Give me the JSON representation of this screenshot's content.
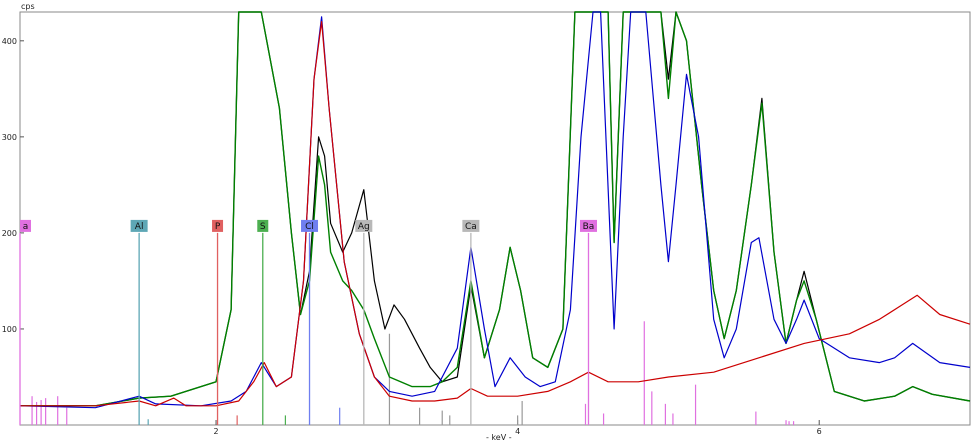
{
  "chart_data": {
    "type": "line",
    "ylabel": "cps",
    "xlabel": "- keV -",
    "xlim": [
      0.7,
      7.0
    ],
    "ylim": [
      0,
      430
    ],
    "x_ticks": [
      {
        "v": 2,
        "label": "2"
      },
      {
        "v": 4,
        "label": "4"
      },
      {
        "v": 6,
        "label": "6"
      }
    ],
    "y_ticks": [
      {
        "v": 100,
        "label": "100"
      },
      {
        "v": 200,
        "label": "200"
      },
      {
        "v": 300,
        "label": "300"
      },
      {
        "v": 400,
        "label": "400"
      }
    ],
    "element_markers": [
      {
        "label": "a",
        "x": 0.7,
        "color": "#e070e0"
      },
      {
        "label": "Al",
        "x": 1.49,
        "color": "#5ea7b5"
      },
      {
        "label": "P",
        "x": 2.01,
        "color": "#e06060"
      },
      {
        "label": "S",
        "x": 2.31,
        "color": "#4caf50"
      },
      {
        "label": "Cl",
        "x": 2.62,
        "color": "#6f7ff0"
      },
      {
        "label": "Ag",
        "x": 2.98,
        "color": "#b8b8b8"
      },
      {
        "label": "Ca",
        "x": 3.69,
        "color": "#b8b8b8"
      },
      {
        "label": "Ba",
        "x": 4.47,
        "color": "#e070e0"
      }
    ],
    "series": [
      {
        "color": "#000000",
        "dash": "",
        "points": [
          [
            0.7,
            20
          ],
          [
            1.2,
            20
          ],
          [
            1.49,
            28
          ],
          [
            1.7,
            30
          ],
          [
            2.0,
            45
          ],
          [
            2.1,
            120
          ],
          [
            2.15,
            430
          ],
          [
            2.3,
            430
          ],
          [
            2.42,
            330
          ],
          [
            2.5,
            200
          ],
          [
            2.56,
            115
          ],
          [
            2.62,
            160
          ],
          [
            2.68,
            300
          ],
          [
            2.72,
            280
          ],
          [
            2.76,
            210
          ],
          [
            2.84,
            180
          ],
          [
            2.9,
            200
          ],
          [
            2.98,
            245
          ],
          [
            3.05,
            150
          ],
          [
            3.12,
            100
          ],
          [
            3.18,
            125
          ],
          [
            3.25,
            110
          ],
          [
            3.35,
            80
          ],
          [
            3.42,
            60
          ],
          [
            3.5,
            45
          ],
          [
            3.6,
            50
          ],
          [
            3.69,
            145
          ],
          [
            3.78,
            70
          ],
          [
            3.88,
            120
          ],
          [
            3.95,
            185
          ],
          [
            4.02,
            140
          ],
          [
            4.1,
            70
          ],
          [
            4.2,
            60
          ],
          [
            4.3,
            100
          ],
          [
            4.38,
            430
          ],
          [
            4.6,
            430
          ],
          [
            4.64,
            190
          ],
          [
            4.7,
            430
          ],
          [
            4.95,
            430
          ],
          [
            5.0,
            360
          ],
          [
            5.05,
            430
          ],
          [
            5.12,
            400
          ],
          [
            5.22,
            250
          ],
          [
            5.3,
            140
          ],
          [
            5.37,
            90
          ],
          [
            5.45,
            140
          ],
          [
            5.55,
            250
          ],
          [
            5.62,
            340
          ],
          [
            5.7,
            180
          ],
          [
            5.78,
            85
          ],
          [
            5.85,
            130
          ],
          [
            5.9,
            160
          ],
          [
            5.98,
            110
          ],
          [
            6.1,
            35
          ],
          [
            6.3,
            25
          ],
          [
            6.5,
            30
          ],
          [
            6.62,
            40
          ],
          [
            6.75,
            32
          ],
          [
            7.0,
            25
          ]
        ]
      },
      {
        "color": "#008000",
        "dash": "",
        "points": [
          [
            0.7,
            20
          ],
          [
            1.2,
            20
          ],
          [
            1.49,
            28
          ],
          [
            1.7,
            30
          ],
          [
            2.0,
            45
          ],
          [
            2.1,
            120
          ],
          [
            2.15,
            430
          ],
          [
            2.3,
            430
          ],
          [
            2.42,
            330
          ],
          [
            2.5,
            200
          ],
          [
            2.56,
            115
          ],
          [
            2.62,
            150
          ],
          [
            2.68,
            280
          ],
          [
            2.72,
            250
          ],
          [
            2.76,
            180
          ],
          [
            2.84,
            150
          ],
          [
            2.9,
            140
          ],
          [
            2.98,
            120
          ],
          [
            3.05,
            90
          ],
          [
            3.15,
            50
          ],
          [
            3.3,
            40
          ],
          [
            3.42,
            40
          ],
          [
            3.5,
            45
          ],
          [
            3.6,
            60
          ],
          [
            3.69,
            150
          ],
          [
            3.78,
            70
          ],
          [
            3.88,
            120
          ],
          [
            3.95,
            185
          ],
          [
            4.02,
            140
          ],
          [
            4.1,
            70
          ],
          [
            4.2,
            60
          ],
          [
            4.3,
            100
          ],
          [
            4.38,
            430
          ],
          [
            4.6,
            430
          ],
          [
            4.64,
            190
          ],
          [
            4.7,
            430
          ],
          [
            4.95,
            430
          ],
          [
            5.0,
            340
          ],
          [
            5.05,
            430
          ],
          [
            5.12,
            400
          ],
          [
            5.22,
            250
          ],
          [
            5.3,
            140
          ],
          [
            5.37,
            90
          ],
          [
            5.45,
            140
          ],
          [
            5.55,
            250
          ],
          [
            5.62,
            335
          ],
          [
            5.7,
            180
          ],
          [
            5.78,
            85
          ],
          [
            5.85,
            130
          ],
          [
            5.9,
            150
          ],
          [
            5.98,
            110
          ],
          [
            6.1,
            35
          ],
          [
            6.3,
            25
          ],
          [
            6.5,
            30
          ],
          [
            6.62,
            40
          ],
          [
            6.75,
            32
          ],
          [
            7.0,
            25
          ]
        ]
      },
      {
        "color": "#0000cc",
        "dash": "",
        "points": [
          [
            0.7,
            20
          ],
          [
            1.2,
            18
          ],
          [
            1.49,
            30
          ],
          [
            1.6,
            22
          ],
          [
            1.9,
            20
          ],
          [
            2.1,
            25
          ],
          [
            2.2,
            35
          ],
          [
            2.3,
            65
          ],
          [
            2.4,
            40
          ],
          [
            2.5,
            50
          ],
          [
            2.58,
            150
          ],
          [
            2.65,
            360
          ],
          [
            2.7,
            425
          ],
          [
            2.75,
            330
          ],
          [
            2.85,
            170
          ],
          [
            2.95,
            95
          ],
          [
            3.05,
            50
          ],
          [
            3.15,
            35
          ],
          [
            3.3,
            30
          ],
          [
            3.45,
            35
          ],
          [
            3.6,
            80
          ],
          [
            3.69,
            185
          ],
          [
            3.78,
            100
          ],
          [
            3.85,
            40
          ],
          [
            3.95,
            70
          ],
          [
            4.05,
            50
          ],
          [
            4.15,
            40
          ],
          [
            4.25,
            45
          ],
          [
            4.35,
            120
          ],
          [
            4.42,
            300
          ],
          [
            4.5,
            430
          ],
          [
            4.55,
            430
          ],
          [
            4.64,
            100
          ],
          [
            4.7,
            300
          ],
          [
            4.75,
            430
          ],
          [
            4.85,
            430
          ],
          [
            4.95,
            250
          ],
          [
            5.0,
            170
          ],
          [
            5.05,
            250
          ],
          [
            5.12,
            365
          ],
          [
            5.2,
            300
          ],
          [
            5.3,
            110
          ],
          [
            5.37,
            70
          ],
          [
            5.45,
            100
          ],
          [
            5.55,
            190
          ],
          [
            5.6,
            195
          ],
          [
            5.7,
            110
          ],
          [
            5.78,
            85
          ],
          [
            5.85,
            110
          ],
          [
            5.9,
            130
          ],
          [
            6.0,
            90
          ],
          [
            6.2,
            70
          ],
          [
            6.4,
            65
          ],
          [
            6.5,
            70
          ],
          [
            6.62,
            85
          ],
          [
            6.8,
            65
          ],
          [
            7.0,
            60
          ]
        ]
      },
      {
        "color": "#cc0000",
        "dash": "",
        "points": [
          [
            0.7,
            20
          ],
          [
            1.2,
            20
          ],
          [
            1.49,
            25
          ],
          [
            1.6,
            20
          ],
          [
            1.72,
            28
          ],
          [
            1.8,
            20
          ],
          [
            2.0,
            20
          ],
          [
            2.15,
            25
          ],
          [
            2.25,
            45
          ],
          [
            2.32,
            65
          ],
          [
            2.4,
            40
          ],
          [
            2.5,
            50
          ],
          [
            2.58,
            150
          ],
          [
            2.65,
            360
          ],
          [
            2.7,
            420
          ],
          [
            2.75,
            330
          ],
          [
            2.85,
            170
          ],
          [
            2.95,
            95
          ],
          [
            3.05,
            50
          ],
          [
            3.15,
            30
          ],
          [
            3.3,
            25
          ],
          [
            3.45,
            25
          ],
          [
            3.6,
            28
          ],
          [
            3.69,
            38
          ],
          [
            3.8,
            30
          ],
          [
            4.0,
            30
          ],
          [
            4.2,
            35
          ],
          [
            4.35,
            45
          ],
          [
            4.47,
            55
          ],
          [
            4.6,
            45
          ],
          [
            4.8,
            45
          ],
          [
            5.0,
            50
          ],
          [
            5.3,
            55
          ],
          [
            5.6,
            70
          ],
          [
            5.9,
            85
          ],
          [
            6.2,
            95
          ],
          [
            6.4,
            110
          ],
          [
            6.55,
            125
          ],
          [
            6.65,
            135
          ],
          [
            6.8,
            115
          ],
          [
            7.0,
            105
          ]
        ]
      }
    ],
    "element_lines": [
      {
        "x": 0.78,
        "h": 30,
        "color": "#e070e0"
      },
      {
        "x": 0.81,
        "h": 24,
        "color": "#e070e0"
      },
      {
        "x": 0.84,
        "h": 26,
        "color": "#e070e0"
      },
      {
        "x": 0.87,
        "h": 28,
        "color": "#e070e0"
      },
      {
        "x": 0.95,
        "h": 30,
        "color": "#e070e0"
      },
      {
        "x": 1.01,
        "h": 18,
        "color": "#e070e0"
      },
      {
        "x": 1.55,
        "h": 6,
        "color": "#5ea7b5"
      },
      {
        "x": 2.14,
        "h": 10,
        "color": "#e06060"
      },
      {
        "x": 2.46,
        "h": 10,
        "color": "#4caf50"
      },
      {
        "x": 2.82,
        "h": 18,
        "color": "#6f7ff0"
      },
      {
        "x": 3.15,
        "h": 95,
        "color": "#999999"
      },
      {
        "x": 3.35,
        "h": 18,
        "color": "#999999"
      },
      {
        "x": 3.5,
        "h": 15,
        "color": "#999999"
      },
      {
        "x": 3.55,
        "h": 10,
        "color": "#999999"
      },
      {
        "x": 4.0,
        "h": 10,
        "color": "#999999"
      },
      {
        "x": 4.03,
        "h": 25,
        "color": "#999999"
      },
      {
        "x": 4.45,
        "h": 22,
        "color": "#e070e0"
      },
      {
        "x": 4.57,
        "h": 12,
        "color": "#e070e0"
      },
      {
        "x": 4.84,
        "h": 108,
        "color": "#e070e0"
      },
      {
        "x": 4.89,
        "h": 35,
        "color": "#e070e0"
      },
      {
        "x": 4.98,
        "h": 22,
        "color": "#e070e0"
      },
      {
        "x": 5.03,
        "h": 12,
        "color": "#e070e0"
      },
      {
        "x": 5.18,
        "h": 42,
        "color": "#e070e0"
      },
      {
        "x": 5.58,
        "h": 14,
        "color": "#e070e0"
      },
      {
        "x": 5.78,
        "h": 5,
        "color": "#e070e0"
      },
      {
        "x": 5.8,
        "h": 4,
        "color": "#e070e0"
      },
      {
        "x": 5.83,
        "h": 4,
        "color": "#e070e0"
      }
    ]
  }
}
